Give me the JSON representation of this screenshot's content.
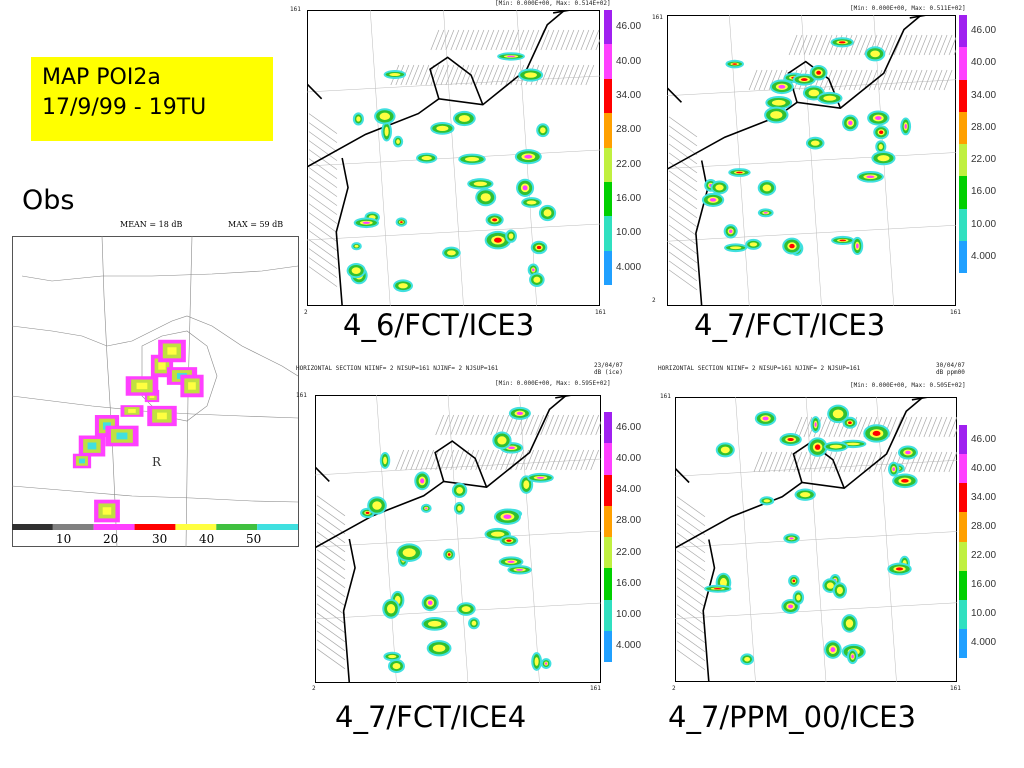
{
  "title": {
    "line1": "MAP POI2a",
    "line2": "17/9/99 - 19TU"
  },
  "obs": {
    "label": "Obs",
    "mean_text": "MEAN =  18 dB",
    "max_text": "MAX =  59 dB",
    "scale_ticks": [
      "10",
      "20",
      "30",
      "40",
      "50"
    ],
    "scale_colors": [
      "#303030",
      "#808080",
      "#ff40ff",
      "#ff0000",
      "#ffff40",
      "#40c040",
      "#40e0e0"
    ],
    "site_labels": [
      "R"
    ]
  },
  "panels": [
    {
      "caption": "4_6/FCT/ICE3",
      "header": "",
      "minmax": "[Min: 0.000E+00, Max: 0.514E+02]",
      "corner_top": "161",
      "corner_bottom_left": "2",
      "corner_bottom_right": "161"
    },
    {
      "caption": "4_7/FCT/ICE3",
      "header": "",
      "minmax": "[Min: 0.000E+00, Max: 0.511E+02]",
      "corner_top": "161",
      "corner_bottom_left": "2",
      "corner_bottom_right": "161"
    },
    {
      "caption": "4_7/FCT/ICE4",
      "header": "HORIZONTAL SECTION NIINF=  2 NISUP=161 NJINF=  2 NJSUP=161",
      "date": "23/04/07",
      "units": "dB (ice)",
      "minmax": "[Min: 0.000E+00, Max: 0.595E+02]",
      "corner_top": "161",
      "corner_bottom_left": "2",
      "corner_bottom_right": "161"
    },
    {
      "caption": "4_7/PPM_00/ICE3",
      "header": "HORIZONTAL SECTION NIINF=  2 NISUP=161 NJINF=  2 NJSUP=161",
      "date": "30/04/07",
      "units": "dB ppm00",
      "minmax": "[Min: 0.000E+00, Max: 0.505E+02]",
      "corner_top": "161",
      "corner_bottom_left": "2",
      "corner_bottom_right": "161"
    }
  ],
  "colorbar": {
    "labels": [
      "46.00",
      "40.00",
      "34.00",
      "28.00",
      "22.00",
      "16.00",
      "10.00",
      "4.000"
    ],
    "colors": [
      "#a020f0",
      "#ff40ff",
      "#ff0000",
      "#ffa000",
      "#c0f040",
      "#00d000",
      "#30e0c0",
      "#20a0ff"
    ]
  }
}
